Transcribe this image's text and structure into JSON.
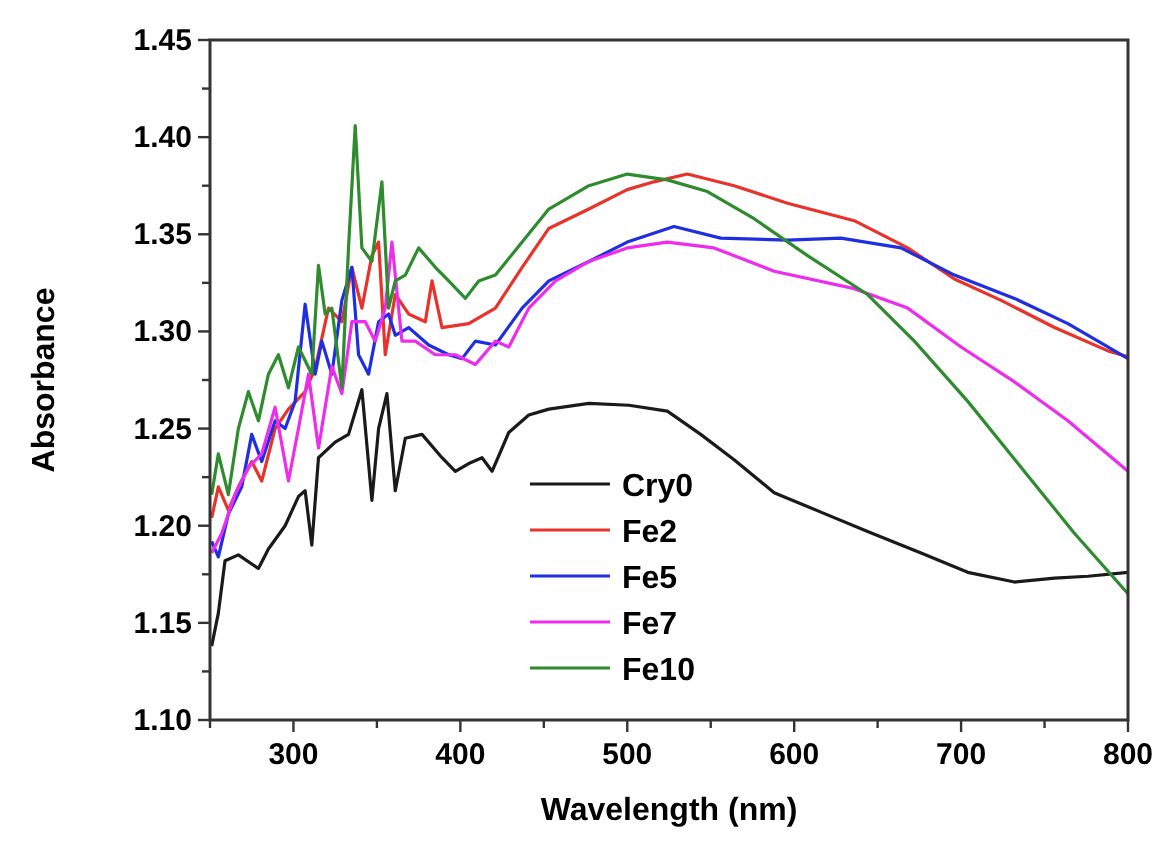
{
  "chart_data": {
    "type": "line",
    "xlabel": "Wavelength (nm)",
    "ylabel": "Absorbance",
    "xlim": [
      250,
      800
    ],
    "ylim": [
      1.1,
      1.45
    ],
    "xticks": [
      {
        "value": 250,
        "label": null
      },
      300,
      {
        "value": 350,
        "label": null
      },
      400,
      {
        "value": 450,
        "label": null
      },
      500,
      {
        "value": 550,
        "label": null
      },
      600,
      {
        "value": 650,
        "label": null
      },
      700,
      {
        "value": 750,
        "label": null
      },
      800
    ],
    "yticks": [
      {
        "value": 1.1,
        "label": "1.10"
      },
      {
        "value": 1.125,
        "label": null
      },
      1.15,
      {
        "value": 1.175,
        "label": null
      },
      {
        "value": 1.2,
        "label": "1.20"
      },
      {
        "value": 1.225,
        "label": null
      },
      1.25,
      {
        "value": 1.275,
        "label": null
      },
      {
        "value": 1.3,
        "label": "1.30"
      },
      {
        "value": 1.325,
        "label": null
      },
      1.35,
      {
        "value": 1.375,
        "label": null
      },
      {
        "value": 1.4,
        "label": "1.40"
      },
      {
        "value": 1.425,
        "label": null
      },
      1.45
    ],
    "grid": false,
    "legend": "bottom",
    "line_style": "solid",
    "marker": "none",
    "series": [
      {
        "name": "Cry0",
        "color": "#1a1a1a",
        "x": [
          251,
          255,
          259,
          267,
          279,
          285,
          295,
          303,
          307,
          311,
          315,
          325,
          333,
          341,
          347,
          351,
          356,
          361,
          367,
          377,
          389,
          397,
          405,
          413,
          419,
          429,
          441,
          453,
          477,
          501,
          524,
          544,
          564,
          588,
          616,
          644,
          676,
          704,
          732,
          756,
          776,
          800
        ],
        "values": [
          1.138,
          1.155,
          1.182,
          1.185,
          1.178,
          1.188,
          1.2,
          1.215,
          1.218,
          1.19,
          1.235,
          1.243,
          1.247,
          1.27,
          1.213,
          1.25,
          1.268,
          1.218,
          1.245,
          1.247,
          1.235,
          1.228,
          1.232,
          1.235,
          1.228,
          1.248,
          1.257,
          1.26,
          1.263,
          1.262,
          1.259,
          1.247,
          1.234,
          1.217,
          1.207,
          1.197,
          1.186,
          1.176,
          1.171,
          1.173,
          1.174,
          1.176
        ]
      },
      {
        "name": "Fe2",
        "color": "#e8322a",
        "x": [
          251,
          255,
          261,
          267,
          275,
          281,
          289,
          297,
          307,
          313,
          321,
          329,
          335,
          341,
          347,
          351,
          355,
          361,
          369,
          379,
          383,
          389,
          405,
          421,
          437,
          453,
          477,
          500,
          516,
          536,
          564,
          596,
          636,
          668,
          696,
          724,
          756,
          788,
          800
        ],
        "values": [
          1.204,
          1.22,
          1.208,
          1.22,
          1.233,
          1.223,
          1.25,
          1.26,
          1.269,
          1.281,
          1.312,
          1.305,
          1.333,
          1.312,
          1.339,
          1.346,
          1.288,
          1.319,
          1.309,
          1.305,
          1.326,
          1.302,
          1.304,
          1.312,
          1.333,
          1.353,
          1.363,
          1.373,
          1.377,
          1.381,
          1.375,
          1.366,
          1.357,
          1.343,
          1.327,
          1.316,
          1.302,
          1.29,
          1.287
        ]
      },
      {
        "name": "Fe5",
        "color": "#1f2ee0",
        "x": [
          251,
          255,
          261,
          269,
          275,
          281,
          289,
          295,
          301,
          307,
          313,
          317,
          323,
          329,
          335,
          339,
          345,
          351,
          357,
          361,
          369,
          381,
          393,
          401,
          409,
          421,
          437,
          453,
          477,
          500,
          528,
          556,
          596,
          628,
          664,
          696,
          732,
          764,
          800
        ],
        "values": [
          1.192,
          1.184,
          1.206,
          1.22,
          1.247,
          1.233,
          1.254,
          1.25,
          1.264,
          1.314,
          1.278,
          1.295,
          1.278,
          1.316,
          1.333,
          1.288,
          1.278,
          1.305,
          1.309,
          1.298,
          1.302,
          1.293,
          1.288,
          1.286,
          1.295,
          1.293,
          1.312,
          1.326,
          1.336,
          1.346,
          1.354,
          1.348,
          1.347,
          1.348,
          1.343,
          1.329,
          1.317,
          1.304,
          1.286
        ]
      },
      {
        "name": "Fe7",
        "color": "#ee2cee",
        "x": [
          251,
          257,
          265,
          273,
          281,
          289,
          297,
          303,
          309,
          315,
          323,
          329,
          335,
          343,
          349,
          355,
          359,
          365,
          373,
          385,
          397,
          409,
          421,
          429,
          441,
          457,
          477,
          500,
          524,
          552,
          588,
          636,
          668,
          700,
          732,
          764,
          800
        ],
        "values": [
          1.186,
          1.196,
          1.216,
          1.23,
          1.237,
          1.261,
          1.223,
          1.25,
          1.278,
          1.24,
          1.282,
          1.268,
          1.305,
          1.305,
          1.295,
          1.312,
          1.346,
          1.295,
          1.295,
          1.288,
          1.288,
          1.283,
          1.295,
          1.292,
          1.312,
          1.326,
          1.336,
          1.343,
          1.346,
          1.343,
          1.331,
          1.322,
          1.312,
          1.292,
          1.274,
          1.254,
          1.228
        ]
      },
      {
        "name": "Fe10",
        "color": "#2e8b2e",
        "x": [
          251,
          255,
          261,
          267,
          273,
          279,
          285,
          291,
          297,
          303,
          311,
          315,
          319,
          323,
          329,
          333,
          337,
          341,
          347,
          353,
          357,
          361,
          367,
          375,
          385,
          393,
          403,
          411,
          421,
          437,
          453,
          477,
          500,
          524,
          548,
          576,
          608,
          644,
          672,
          704,
          736,
          768,
          800
        ],
        "values": [
          1.216,
          1.237,
          1.216,
          1.25,
          1.269,
          1.254,
          1.278,
          1.288,
          1.271,
          1.292,
          1.278,
          1.334,
          1.309,
          1.312,
          1.271,
          1.343,
          1.406,
          1.343,
          1.336,
          1.377,
          1.312,
          1.326,
          1.329,
          1.343,
          1.333,
          1.326,
          1.317,
          1.326,
          1.329,
          1.346,
          1.363,
          1.375,
          1.381,
          1.378,
          1.372,
          1.358,
          1.339,
          1.319,
          1.295,
          1.264,
          1.23,
          1.196,
          1.165
        ]
      }
    ]
  }
}
